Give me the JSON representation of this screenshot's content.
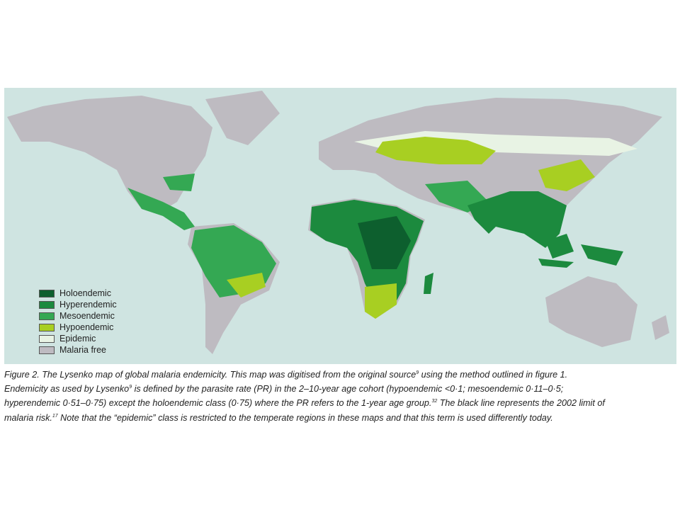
{
  "legend": [
    {
      "label": "Holoendemic",
      "color": "#0d5f2e"
    },
    {
      "label": "Hyperendemic",
      "color": "#1c8a3e"
    },
    {
      "label": "Mesoendemic",
      "color": "#34a853"
    },
    {
      "label": "Hypoendemic",
      "color": "#a8cf22"
    },
    {
      "label": "Epidemic",
      "color": "#e8f3e4"
    },
    {
      "label": "Malaria free",
      "color": "#bebbc1"
    }
  ],
  "caption": {
    "lines": [
      [
        {
          "text": "Figure 2. The Lysenko map of global malaria endemicity. This map was digitised from the original source"
        },
        {
          "sup": "9"
        },
        {
          "text": " using the method outlined in figure 1."
        }
      ],
      [
        {
          "text": "Endemicity as used by Lysenko"
        },
        {
          "sup": "9"
        },
        {
          "text": " is defined by the parasite rate (PR) in the 2–10-year age cohort (hypoendemic <0·1; mesoendemic 0·11–0·5;"
        }
      ],
      [
        {
          "text": "hyperendemic 0·51–0·75) except the holoendemic class (0·75) where the PR refers to the 1-year age group."
        },
        {
          "sup": "32"
        },
        {
          "text": " The black line represents the 2002 limit of"
        }
      ],
      [
        {
          "text": "malaria risk."
        },
        {
          "sup": "17"
        },
        {
          "text": " Note that the “epidemic” class is restricted to the temperate regions in these maps and that this term is used differently today."
        }
      ]
    ]
  }
}
